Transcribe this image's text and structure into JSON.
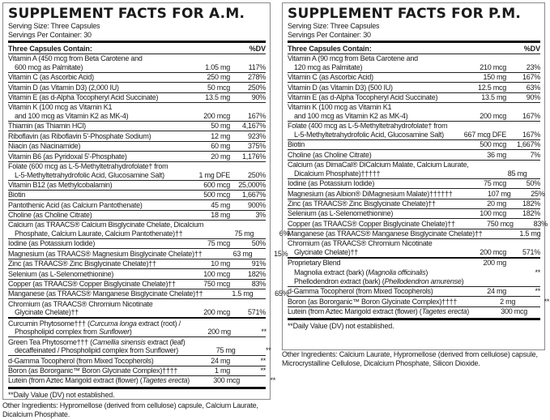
{
  "am": {
    "title": "SUPPLEMENT FACTS FOR A.M.",
    "serving_size": "Serving Size: Three Capsules",
    "servings_per_container": "Servings Per Container: 30",
    "header": {
      "contain": "Three Capsules Contain:",
      "dv": "%DV"
    },
    "rows": [
      {
        "lines": [
          [
            "Vitamin A (450 mcg from Beta Carotene and"
          ],
          [
            "600 mcg as Palmitate)"
          ]
        ],
        "amount": "1.05 mg",
        "dv": "117%"
      },
      {
        "lines": [
          [
            "Vitamin C (as Ascorbic Acid)"
          ]
        ],
        "amount": "250 mg",
        "dv": "278%"
      },
      {
        "lines": [
          [
            "Vitamin D (as Vitamin D3) (2,000 IU)"
          ]
        ],
        "amount": "50 mcg",
        "dv": "250%"
      },
      {
        "lines": [
          [
            "Vitamin E (as d-Alpha Tocopheryl Acid Succinate)"
          ]
        ],
        "amount": "13.5 mg",
        "dv": "90%"
      },
      {
        "lines": [
          [
            "Vitamin K (100 mcg as Vitamin K1"
          ],
          [
            "and 100 mcg as Vitamin K2 as MK-4)"
          ]
        ],
        "amount": "200 mcg",
        "dv": "167%"
      },
      {
        "lines": [
          [
            "Thiamin (as Thiamin HCl)"
          ]
        ],
        "amount": "50 mg",
        "dv": "4,167%"
      },
      {
        "lines": [
          [
            "Riboflavin (as Riboflavin 5'-Phosphate Sodium)"
          ]
        ],
        "amount": "12 mg",
        "dv": "923%"
      },
      {
        "lines": [
          [
            "Niacin (as Niacinamide)"
          ]
        ],
        "amount": "60 mg",
        "dv": "375%"
      },
      {
        "lines": [
          [
            "Vitamin B6 (as Pyridoxal 5'-Phosphate)"
          ]
        ],
        "amount": "20 mg",
        "dv": "1,176%"
      },
      {
        "lines": [
          [
            "Folate (600 mcg as L-5-Methyltetrahydrofolate† from"
          ],
          [
            "L-5-Methyltetrahydrofolic Acid, Glucosamine Salt)"
          ]
        ],
        "amount": "1 mg DFE",
        "dv": "250%"
      },
      {
        "lines": [
          [
            "Vitamin B12 (as Methylcobalamin)"
          ]
        ],
        "amount": "600 mcg",
        "dv": "25,000%"
      },
      {
        "lines": [
          [
            "Biotin"
          ]
        ],
        "amount": "500 mcg",
        "dv": "1,667%"
      },
      {
        "lines": [
          [
            "Pantothenic Acid (as Calcium Pantothenate)"
          ]
        ],
        "amount": "45 mg",
        "dv": "900%"
      },
      {
        "lines": [
          [
            "Choline (as Choline Citrate)"
          ]
        ],
        "amount": "18 mg",
        "dv": "3%"
      },
      {
        "lines": [
          [
            "Calcium (as TRAACS® Calcium Bisglycinate Chelate, Dicalcium"
          ],
          [
            "Phosphate, Calcium Laurate, Calcium Pantothenate)††"
          ]
        ],
        "amount": "75 mg",
        "dv": "6%"
      },
      {
        "lines": [
          [
            "Iodine (as Potassium Iodide)"
          ]
        ],
        "amount": "75 mcg",
        "dv": "50%"
      },
      {
        "lines": [
          [
            "Magnesium (as TRAACS® Magnesium Bisglycinate Chelate)††"
          ]
        ],
        "amount": "63 mg",
        "dv": "15%"
      },
      {
        "lines": [
          [
            "Zinc (as TRAACS® Zinc Bisglycinate Chelate)††"
          ]
        ],
        "amount": "10 mg",
        "dv": "91%"
      },
      {
        "lines": [
          [
            "Selenium (as L-Selenomethionine)"
          ]
        ],
        "amount": "100 mcg",
        "dv": "182%"
      },
      {
        "lines": [
          [
            "Copper (as TRAACS® Copper Bisglycinate Chelate)††"
          ]
        ],
        "amount": "750 mcg",
        "dv": "83%"
      },
      {
        "lines": [
          [
            "Manganese (as TRAACS® Manganese Bisglycinate Chelate)††"
          ]
        ],
        "amount": "1.5 mg",
        "dv": "65%"
      },
      {
        "lines": [
          [
            "Chromium (as TRAACS® Chromium Nicotinate"
          ],
          [
            "Glycinate Chelate)††"
          ]
        ],
        "amount": "200 mcg",
        "dv": "571%",
        "last_before_thick": true
      },
      {
        "lines": [
          [
            "Curcumin Phytosome††† (",
            {
              "i": "Curcuma longa"
            },
            " extract (root) /"
          ],
          [
            "Phospholipid complex from ",
            {
              "i": "Sunflower"
            },
            ")"
          ]
        ],
        "amount": "200 mg",
        "dv": "**",
        "thick_before": true
      },
      {
        "lines": [
          [
            "Green Tea Phytosome††† (",
            {
              "i": "Camellia sinensis"
            },
            " extract (leaf)"
          ],
          [
            "decaffeinated / Phospholipid complex from Sunflower)"
          ]
        ],
        "amount": "75 mg",
        "dv": "**"
      },
      {
        "lines": [
          [
            "d-Gamma Tocopherol (from Mixed Tocopherols)"
          ]
        ],
        "amount": "24 mg",
        "dv": "**"
      },
      {
        "lines": [
          [
            "Boron (as Bororganic™ Boron Glycinate Complex)††††"
          ]
        ],
        "amount": "1 mg",
        "dv": "**"
      },
      {
        "lines": [
          [
            "Lutein (from Aztec Marigold extract (flower) (",
            {
              "i": "Tagetes erecta"
            },
            ")"
          ]
        ],
        "amount": "300 mcg",
        "dv": "**",
        "last_before_thick": true
      }
    ],
    "footnote": "**Daily Value (DV) not established.",
    "other_ingredients": "Other Ingredients: Hypromellose (derived from cellulose) capsule, Calcium Laurate, Dicalcium Phosphate."
  },
  "pm": {
    "title": "SUPPLEMENT FACTS FOR P.M.",
    "serving_size": "Serving Size: Three Capsules",
    "servings_per_container": "Servings Per Container: 30",
    "header": {
      "contain": "Three Capsules Contain:",
      "dv": "%DV"
    },
    "rows": [
      {
        "lines": [
          [
            "Vitamin A (90 mcg from Beta Carotene and"
          ],
          [
            "120 mcg as Palmitate)"
          ]
        ],
        "amount": "210 mcg",
        "dv": "23%"
      },
      {
        "lines": [
          [
            "Vitamin C (as Ascorbic Acid)"
          ]
        ],
        "amount": "150 mg",
        "dv": "167%"
      },
      {
        "lines": [
          [
            "Vitamin D (as Vitamin D3) (500 IU)"
          ]
        ],
        "amount": "12.5 mcg",
        "dv": "63%"
      },
      {
        "lines": [
          [
            "Vitamin E (as d-Alpha Tocopheryl Acid Succinate)"
          ]
        ],
        "amount": "13.5 mg",
        "dv": "90%"
      },
      {
        "lines": [
          [
            "Vitamin K (100 mcg as Vitamin K1"
          ],
          [
            "and 100 mcg as Vitamin K2 as MK-4)"
          ]
        ],
        "amount": "200 mcg",
        "dv": "167%"
      },
      {
        "lines": [
          [
            "Folate (400 mcg as L-5-Methyltetrahydrofolate† from"
          ],
          [
            "L-5-Methyltetrahydrofolic Acid, Glucosamine Salt)"
          ]
        ],
        "amount": "667 mcg DFE",
        "dv": "167%"
      },
      {
        "lines": [
          [
            "Biotin"
          ]
        ],
        "amount": "500 mcg",
        "dv": "1,667%"
      },
      {
        "lines": [
          [
            "Choline (as Choline Citrate)"
          ]
        ],
        "amount": "36 mg",
        "dv": "7%"
      },
      {
        "lines": [
          [
            "Calcium (as DimaCal® DiCalcium Malate, Calcium Laurate,"
          ],
          [
            "Dicalcium Phosphate)†††††"
          ]
        ],
        "amount": "85 mg",
        "dv": "7%"
      },
      {
        "lines": [
          [
            "Iodine (as Potassium Iodide)"
          ]
        ],
        "amount": "75 mcg",
        "dv": "50%"
      },
      {
        "lines": [
          [
            "Magnesium (as Albion® DiMagnesium Malate)††††††"
          ]
        ],
        "amount": "107 mg",
        "dv": "25%"
      },
      {
        "lines": [
          [
            "Zinc (as TRAACS® Zinc Bisglycinate Chelate)††"
          ]
        ],
        "amount": "20 mg",
        "dv": "182%"
      },
      {
        "lines": [
          [
            "Selenium (as L-Selenomethionine)"
          ]
        ],
        "amount": "100 mcg",
        "dv": "182%"
      },
      {
        "lines": [
          [
            "Copper (as TRAACS® Copper Bisglycinate Chelate)††"
          ]
        ],
        "amount": "750 mcg",
        "dv": "83%"
      },
      {
        "lines": [
          [
            "Manganese (as TRAACS® Manganese Bisglycinate Chelate)††"
          ]
        ],
        "amount": "1.5 mg",
        "dv": "65%"
      },
      {
        "lines": [
          [
            "Chromium (as TRAACS® Chromium Nicotinate"
          ],
          [
            "Glycinate Chelate)††"
          ]
        ],
        "amount": "200 mcg",
        "dv": "571%",
        "last_before_thick": true
      },
      {
        "lines": [
          [
            "Proprietary Blend"
          ]
        ],
        "amount": "200 mg",
        "dv": "",
        "thick_before": true,
        "no_border": true
      },
      {
        "lines": [
          [
            "Magnolia extract (bark) (",
            {
              "i": "Magnolia officinalis"
            },
            ")"
          ]
        ],
        "amount": "",
        "dv": "**",
        "sub": true,
        "no_border": true
      },
      {
        "lines": [
          [
            "Phellodendron extract (bark) (",
            {
              "i": "Phellodendron amurense"
            },
            ")"
          ]
        ],
        "amount": "",
        "dv": "**",
        "sub": true
      },
      {
        "lines": [
          [
            "d-Gamma Tocopherol (from Mixed Tocopherols)"
          ]
        ],
        "amount": "24 mg",
        "dv": "**"
      },
      {
        "lines": [
          [
            "Boron (as Bororganic™ Boron Glycinate Complex)††††"
          ]
        ],
        "amount": "2 mg",
        "dv": "**"
      },
      {
        "lines": [
          [
            "Lutein (from Aztec Marigold extract (flower) (",
            {
              "i": "Tagetes erecta"
            },
            ")"
          ]
        ],
        "amount": "300 mcg",
        "dv": "**",
        "last_before_thick": true
      }
    ],
    "footnote": "**Daily Value (DV) not established.",
    "other_ingredients": "Other Ingredients: Calcium Laurate, Hypromellose (derived from cellulose) capsule, Microcrystalline Cellulose, Dicalcium Phosphate, Silicon Dioxide."
  }
}
